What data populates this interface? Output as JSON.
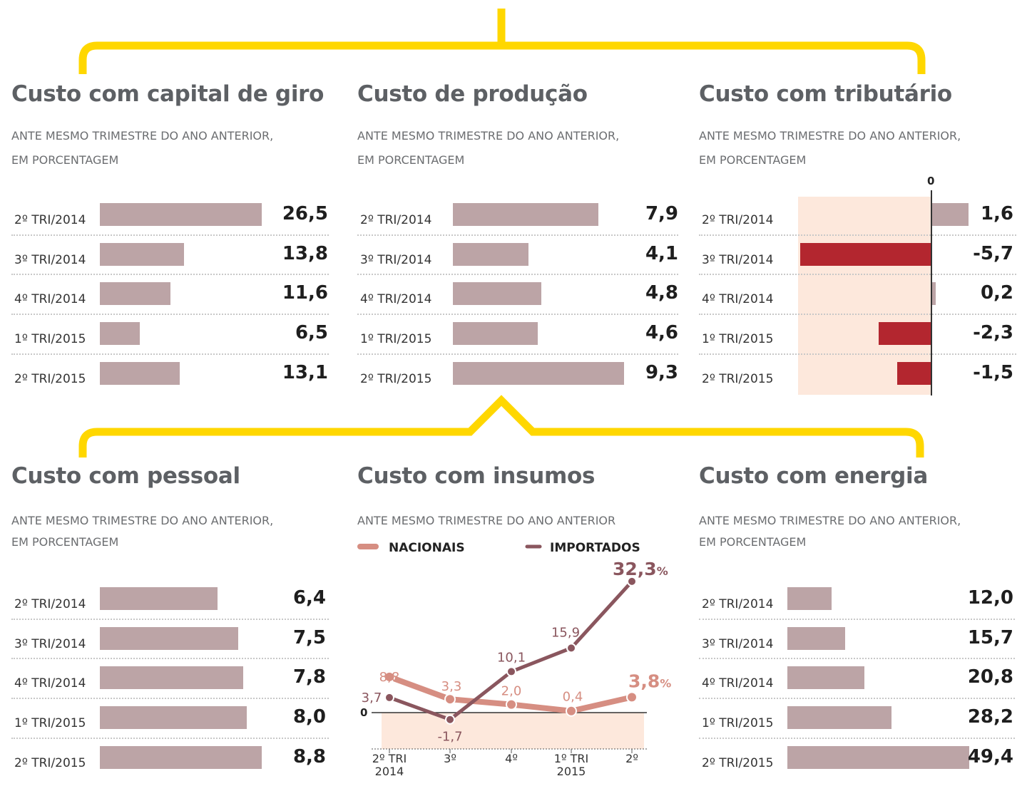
{
  "colors": {
    "bracket": "#ffd700",
    "bar": "#bca4a6",
    "bar_negative": "#b3262f",
    "zone": "#fde8dc",
    "nacionais": "#d68e82",
    "importados": "#8a565e",
    "title": "#5d6064"
  },
  "chart_data": [
    {
      "type": "bar",
      "orientation": "horizontal",
      "title": "Custo com capital de giro",
      "subtitle_lines": [
        "ANTE MESMO TRIMESTRE DO ANO ANTERIOR,",
        "EM PORCENTAGEM"
      ],
      "categories": [
        "2º TRI/2014",
        "3º TRI/2014",
        "4º TRI/2014",
        "1º TRI/2015",
        "2º TRI/2015"
      ],
      "values": [
        26.5,
        13.8,
        11.6,
        6.5,
        13.1
      ],
      "labels": [
        "26,5",
        "13,8",
        "11,6",
        "6,5",
        "13,1"
      ]
    },
    {
      "type": "bar",
      "orientation": "horizontal",
      "title": "Custo de produção",
      "subtitle_lines": [
        "ANTE MESMO TRIMESTRE DO ANO ANTERIOR,",
        "EM PORCENTAGEM"
      ],
      "categories": [
        "2º TRI/2014",
        "3º TRI/2014",
        "4º TRI/2014",
        "1º TRI/2015",
        "2º TRI/2015"
      ],
      "values": [
        7.9,
        4.1,
        4.8,
        4.6,
        9.3
      ],
      "labels": [
        "7,9",
        "4,1",
        "4,8",
        "4,6",
        "9,3"
      ]
    },
    {
      "type": "bar",
      "orientation": "horizontal",
      "title": "Custo com tributário",
      "subtitle_lines": [
        "ANTE MESMO TRIMESTRE DO ANO ANTERIOR,",
        "EM PORCENTAGEM"
      ],
      "zero_label": "0",
      "categories": [
        "2º TRI/2014",
        "3º TRI/2014",
        "4º TRI/2014",
        "1º TRI/2015",
        "2º TRI/2015"
      ],
      "values": [
        1.6,
        -5.7,
        0.2,
        -2.3,
        -1.5
      ],
      "labels": [
        "1,6",
        "-5,7",
        "0,2",
        "-2,3",
        "-1,5"
      ]
    },
    {
      "type": "bar",
      "orientation": "horizontal",
      "title": "Custo com pessoal",
      "subtitle_lines": [
        "ANTE MESMO TRIMESTRE DO ANO ANTERIOR,",
        "EM PORCENTAGEM"
      ],
      "categories": [
        "2º TRI/2014",
        "3º TRI/2014",
        "4º TRI/2014",
        "1º TRI/2015",
        "2º TRI/2015"
      ],
      "values": [
        6.4,
        7.5,
        7.8,
        8.0,
        8.8
      ],
      "labels": [
        "6,4",
        "7,5",
        "7,8",
        "8,0",
        "8,8"
      ]
    },
    {
      "type": "line",
      "title": "Custo com insumos",
      "subtitle_lines": [
        "ANTE MESMO TRIMESTRE DO ANO ANTERIOR"
      ],
      "zero_label": "0",
      "x": [
        [
          "2º TRI",
          "2014"
        ],
        [
          "3º"
        ],
        [
          "4º"
        ],
        [
          "1º TRI",
          "2015"
        ],
        [
          "2º"
        ]
      ],
      "series": [
        {
          "name": "NACIONAIS",
          "values": [
            8.8,
            3.3,
            2.0,
            0.4,
            3.8
          ],
          "labels": [
            "8,8",
            "3,3",
            "2,0",
            "0,4",
            "3,8"
          ],
          "last_suffix": "%"
        },
        {
          "name": "IMPORTADOS",
          "values": [
            3.7,
            -1.7,
            10.1,
            15.9,
            32.3
          ],
          "labels": [
            "3,7",
            "-1,7",
            "10,1",
            "15,9",
            "32,3"
          ],
          "last_suffix": "%"
        }
      ]
    },
    {
      "type": "bar",
      "orientation": "horizontal",
      "title": "Custo com energia",
      "subtitle_lines": [
        "ANTE MESMO TRIMESTRE DO ANO ANTERIOR,",
        "EM PORCENTAGEM"
      ],
      "categories": [
        "2º TRI/2014",
        "3º TRI/2014",
        "4º TRI/2014",
        "1º TRI/2015",
        "2º TRI/2015"
      ],
      "values": [
        12.0,
        15.7,
        20.8,
        28.2,
        49.4
      ],
      "labels": [
        "12,0",
        "15,7",
        "20,8",
        "28,2",
        "49,4"
      ]
    }
  ]
}
